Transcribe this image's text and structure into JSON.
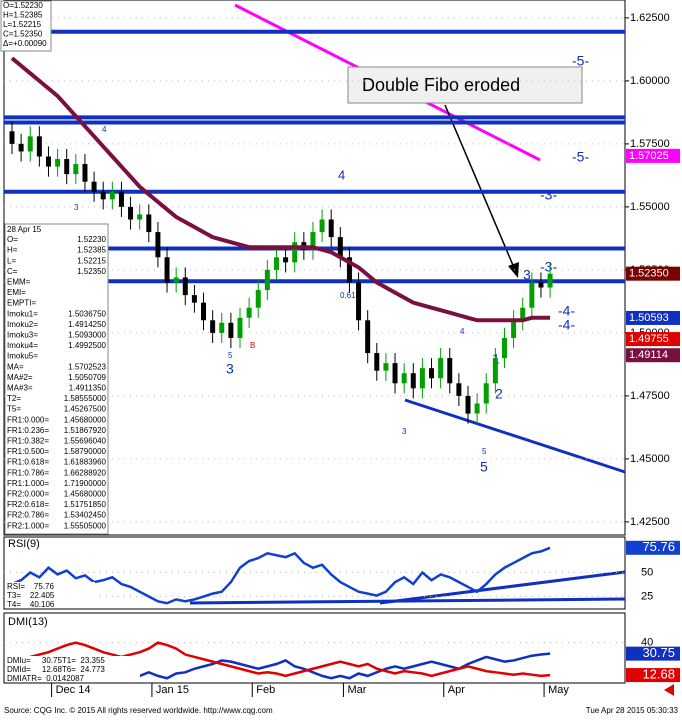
{
  "chart_data": [
    {
      "type": "candlestick",
      "categories": [
        null,
        null,
        null,
        null,
        null,
        "Dec 14",
        null,
        null,
        null,
        null,
        null,
        null,
        null,
        null,
        null,
        null,
        "Jan 15",
        null,
        null,
        null,
        null,
        null,
        null,
        null,
        null,
        null,
        null,
        "Feb",
        null,
        null,
        null,
        null,
        null,
        null,
        null,
        null,
        null,
        "Mar",
        null,
        null,
        null,
        null,
        null,
        null,
        null,
        null,
        null,
        null,
        "Apr",
        null,
        null,
        null,
        null,
        null,
        null,
        null,
        null,
        null,
        null,
        "May"
      ],
      "open": [
        1.58,
        1.575,
        1.572,
        1.578,
        1.57,
        1.566,
        1.569,
        1.563,
        1.567,
        1.56,
        1.556,
        1.553,
        1.556,
        1.55,
        1.545,
        1.547,
        1.54,
        1.53,
        1.52,
        1.522,
        1.515,
        1.512,
        1.505,
        1.5,
        1.504,
        1.498,
        1.506,
        1.51,
        1.517,
        1.525,
        1.53,
        1.528,
        1.536,
        1.533,
        1.54,
        1.545,
        1.538,
        1.53,
        1.52,
        1.505,
        1.492,
        1.485,
        1.488,
        1.48,
        1.484,
        1.478,
        1.486,
        1.482,
        1.49,
        1.48,
        1.475,
        1.468,
        1.472,
        1.48,
        1.49,
        1.498,
        1.505,
        1.51,
        1.52,
        1.518
      ],
      "high": [
        1.584,
        1.579,
        1.582,
        1.582,
        1.574,
        1.573,
        1.573,
        1.571,
        1.571,
        1.564,
        1.56,
        1.56,
        1.56,
        1.554,
        1.551,
        1.551,
        1.544,
        1.534,
        1.526,
        1.526,
        1.519,
        1.516,
        1.509,
        1.508,
        1.508,
        1.51,
        1.514,
        1.521,
        1.529,
        1.534,
        1.534,
        1.54,
        1.54,
        1.544,
        1.549,
        1.549,
        1.542,
        1.534,
        1.524,
        1.509,
        1.496,
        1.492,
        1.492,
        1.488,
        1.488,
        1.49,
        1.49,
        1.494,
        1.494,
        1.484,
        1.479,
        1.476,
        1.484,
        1.494,
        1.502,
        1.509,
        1.514,
        1.524,
        1.524,
        1.5275
      ],
      "low": [
        1.571,
        1.568,
        1.568,
        1.566,
        1.562,
        1.562,
        1.559,
        1.559,
        1.556,
        1.552,
        1.549,
        1.549,
        1.546,
        1.541,
        1.541,
        1.536,
        1.526,
        1.516,
        1.516,
        1.511,
        1.508,
        1.501,
        1.496,
        1.496,
        1.494,
        1.494,
        1.502,
        1.506,
        1.513,
        1.521,
        1.524,
        1.524,
        1.529,
        1.529,
        1.536,
        1.534,
        1.526,
        1.516,
        1.501,
        1.488,
        1.481,
        1.481,
        1.476,
        1.476,
        1.474,
        1.474,
        1.478,
        1.478,
        1.476,
        1.471,
        1.464,
        1.464,
        1.468,
        1.476,
        1.486,
        1.494,
        1.501,
        1.506,
        1.514,
        1.514
      ],
      "close": [
        1.575,
        1.572,
        1.578,
        1.57,
        1.566,
        1.569,
        1.563,
        1.567,
        1.56,
        1.556,
        1.553,
        1.556,
        1.55,
        1.545,
        1.547,
        1.54,
        1.53,
        1.52,
        1.522,
        1.515,
        1.512,
        1.505,
        1.5,
        1.504,
        1.498,
        1.506,
        1.51,
        1.517,
        1.525,
        1.53,
        1.528,
        1.536,
        1.533,
        1.54,
        1.545,
        1.538,
        1.53,
        1.52,
        1.505,
        1.492,
        1.485,
        1.488,
        1.48,
        1.484,
        1.478,
        1.486,
        1.482,
        1.49,
        1.48,
        1.475,
        1.468,
        1.472,
        1.48,
        1.49,
        1.498,
        1.505,
        1.51,
        1.52,
        1.518,
        1.5235
      ],
      "up_color": "#00a000",
      "down_color": "#000000",
      "overlays": [
        {
          "color": "#7a1040",
          "values": [
            1.609,
            1.606,
            1.603,
            1.6,
            1.597,
            1.594,
            1.59,
            1.586,
            1.582,
            1.578,
            1.574,
            1.57,
            1.566,
            1.562,
            1.558,
            1.555,
            1.552,
            1.549,
            1.546,
            1.544,
            1.542,
            1.54,
            1.538,
            1.537,
            1.536,
            1.535,
            1.534,
            1.534,
            1.534,
            1.534,
            1.534,
            1.534,
            1.534,
            1.534,
            1.533,
            1.532,
            1.53,
            1.528,
            1.526,
            1.523,
            1.52,
            1.518,
            1.516,
            1.514,
            1.512,
            1.511,
            1.51,
            1.509,
            1.508,
            1.507,
            1.506,
            1.505,
            1.505,
            1.505,
            1.505,
            1.505,
            1.505,
            1.506,
            1.506,
            1.506
          ]
        }
      ],
      "levels": [
        1.6195,
        1.5855,
        1.5835,
        1.556,
        1.5335,
        1.5205
      ],
      "level_color": "#1030c0",
      "ylim": [
        1.4198,
        1.6321
      ],
      "yticks": [
        {
          "value": 1.625,
          "label": "1.62500"
        },
        {
          "value": 1.6,
          "label": "1.60000"
        },
        {
          "value": 1.575,
          "label": "1.57500"
        },
        {
          "value": 1.55,
          "label": "1.55000"
        },
        {
          "value": 1.525,
          "label": "1.52500"
        },
        {
          "value": 1.5,
          "label": "1.50000"
        },
        {
          "value": 1.475,
          "label": "1.47500"
        },
        {
          "value": 1.45,
          "label": "1.45000"
        },
        {
          "value": 1.425,
          "label": "1.42500"
        }
      ],
      "price_labels": [
        {
          "value": 1.57025,
          "label": "1.57025",
          "color": "#ff00ff"
        },
        {
          "value": 1.5235,
          "label": "1.52350",
          "color": "#7a0000"
        },
        {
          "value": 1.50593,
          "label": "1.50593",
          "color": "#1030c0"
        },
        {
          "value": 1.49755,
          "label": "1.49755",
          "color": "#e00000"
        },
        {
          "value": 1.49114,
          "label": "1.49114",
          "color": "#7a1040"
        }
      ],
      "annotations": [
        "Double Fibo eroded",
        "-5-",
        "-5-",
        "-3-",
        "-3-",
        "-4-",
        "-4-",
        "4",
        "4",
        "3",
        "4",
        "3",
        "5",
        "3",
        "1",
        "2",
        "4",
        "3",
        "5",
        "5",
        "0.618",
        "B"
      ]
    },
    {
      "type": "line",
      "title": "RSI(9)",
      "ylim": [
        12,
        87
      ],
      "yticks": [
        50,
        25
      ],
      "color": "#1040d0",
      "values": [
        38,
        42,
        50,
        45,
        55,
        48,
        52,
        44,
        47,
        40,
        42,
        45,
        38,
        35,
        30,
        25,
        20,
        18,
        22,
        20,
        22,
        25,
        28,
        30,
        40,
        55,
        62,
        65,
        70,
        68,
        66,
        70,
        60,
        55,
        58,
        48,
        40,
        35,
        30,
        28,
        26,
        30,
        40,
        45,
        38,
        50,
        42,
        48,
        45,
        40,
        35,
        30,
        38,
        48,
        55,
        60,
        65,
        70,
        72,
        75.76
      ],
      "last": 75.76,
      "legend": [
        "RSI=    75.76",
        "T3=    22.405",
        "T4=    40.106"
      ]
    },
    {
      "type": "line",
      "title": "DMI(13)",
      "ylim": [
        6,
        65
      ],
      "yticks": [
        40
      ],
      "series": [
        {
          "color": "#1030c0",
          "values": [
            20,
            22,
            18,
            20,
            15,
            12,
            14,
            10,
            12,
            8,
            10,
            12,
            8,
            10,
            12,
            15,
            12,
            10,
            14,
            15,
            18,
            20,
            22,
            25,
            24,
            22,
            20,
            18,
            20,
            22,
            25,
            20,
            18,
            15,
            12,
            10,
            12,
            10,
            14,
            12,
            15,
            18,
            20,
            18,
            20,
            22,
            24,
            22,
            20,
            18,
            22,
            25,
            28,
            26,
            24,
            25,
            27,
            29,
            30,
            30.75
          ]
        },
        {
          "color": "#e00000",
          "values": [
            25,
            24,
            28,
            30,
            32,
            35,
            38,
            40,
            38,
            35,
            32,
            30,
            28,
            30,
            32,
            35,
            40,
            38,
            35,
            30,
            28,
            26,
            24,
            22,
            20,
            18,
            16,
            14,
            15,
            14,
            12,
            14,
            16,
            18,
            20,
            22,
            24,
            22,
            20,
            22,
            18,
            16,
            14,
            16,
            15,
            14,
            12,
            14,
            16,
            18,
            20,
            18,
            16,
            15,
            14,
            13,
            14,
            13,
            12,
            12.68
          ]
        }
      ],
      "legend": [
        "DMIu=     30.75T1=  23.355",
        "DMId=     12.68T6=  24.773",
        "DMIATR=  0.0142087"
      ]
    }
  ],
  "page": {
    "quote": [
      "O=1.52230",
      "H=1.52385",
      "L=1.52215",
      "C=1.52350",
      "Δ=+0.00090"
    ],
    "window_title": "28 Apr 15",
    "window": [
      [
        "O=",
        "1.52230"
      ],
      [
        "H=",
        "1.52385"
      ],
      [
        "L=",
        "1.52215"
      ],
      [
        "C=",
        "1.52350"
      ],
      [
        "EMM="
      ],
      [
        "EMI="
      ],
      [
        "EMPTI="
      ],
      [
        "Imoku1=",
        "1.5036750"
      ],
      [
        "Imoku2=",
        "1.4914250"
      ],
      [
        "Imoku3=",
        "1.5093000"
      ],
      [
        "Imoku4=",
        "1.4992500"
      ],
      [
        "Imoku5="
      ],
      [
        "MA=",
        "1.5702523"
      ],
      [
        "MA#2=",
        "1.5050709"
      ],
      [
        "MA#3=",
        "1.4911350"
      ],
      [
        "T2=",
        "1.58555000"
      ],
      [
        "T5=",
        "1.45267500"
      ],
      [
        "FR1:0.000=",
        "1.45680000"
      ],
      [
        "FR1:0.236=",
        "1.51867920"
      ],
      [
        "FR1:0.382=",
        "1.55696040"
      ],
      [
        "FR1:0.500=",
        "1.58790000"
      ],
      [
        "FR1:0.618=",
        "1.61883960"
      ],
      [
        "FR1:0.786=",
        "1.66288920"
      ],
      [
        "FR1:1.000=",
        "1.71900000"
      ],
      [
        "FR2:0.000=",
        "1.45680000"
      ],
      [
        "FR2:0.618=",
        "1.51751850"
      ],
      [
        "FR2:0.786=",
        "1.53402450"
      ],
      [
        "FR2:1.000=",
        "1.55505000"
      ]
    ],
    "footer": "Source: CQG Inc. © 2015 All rights reserved worldwide. http://www.cqg.com",
    "timestamp": "Tue Apr 28 2015 05:30:33"
  }
}
